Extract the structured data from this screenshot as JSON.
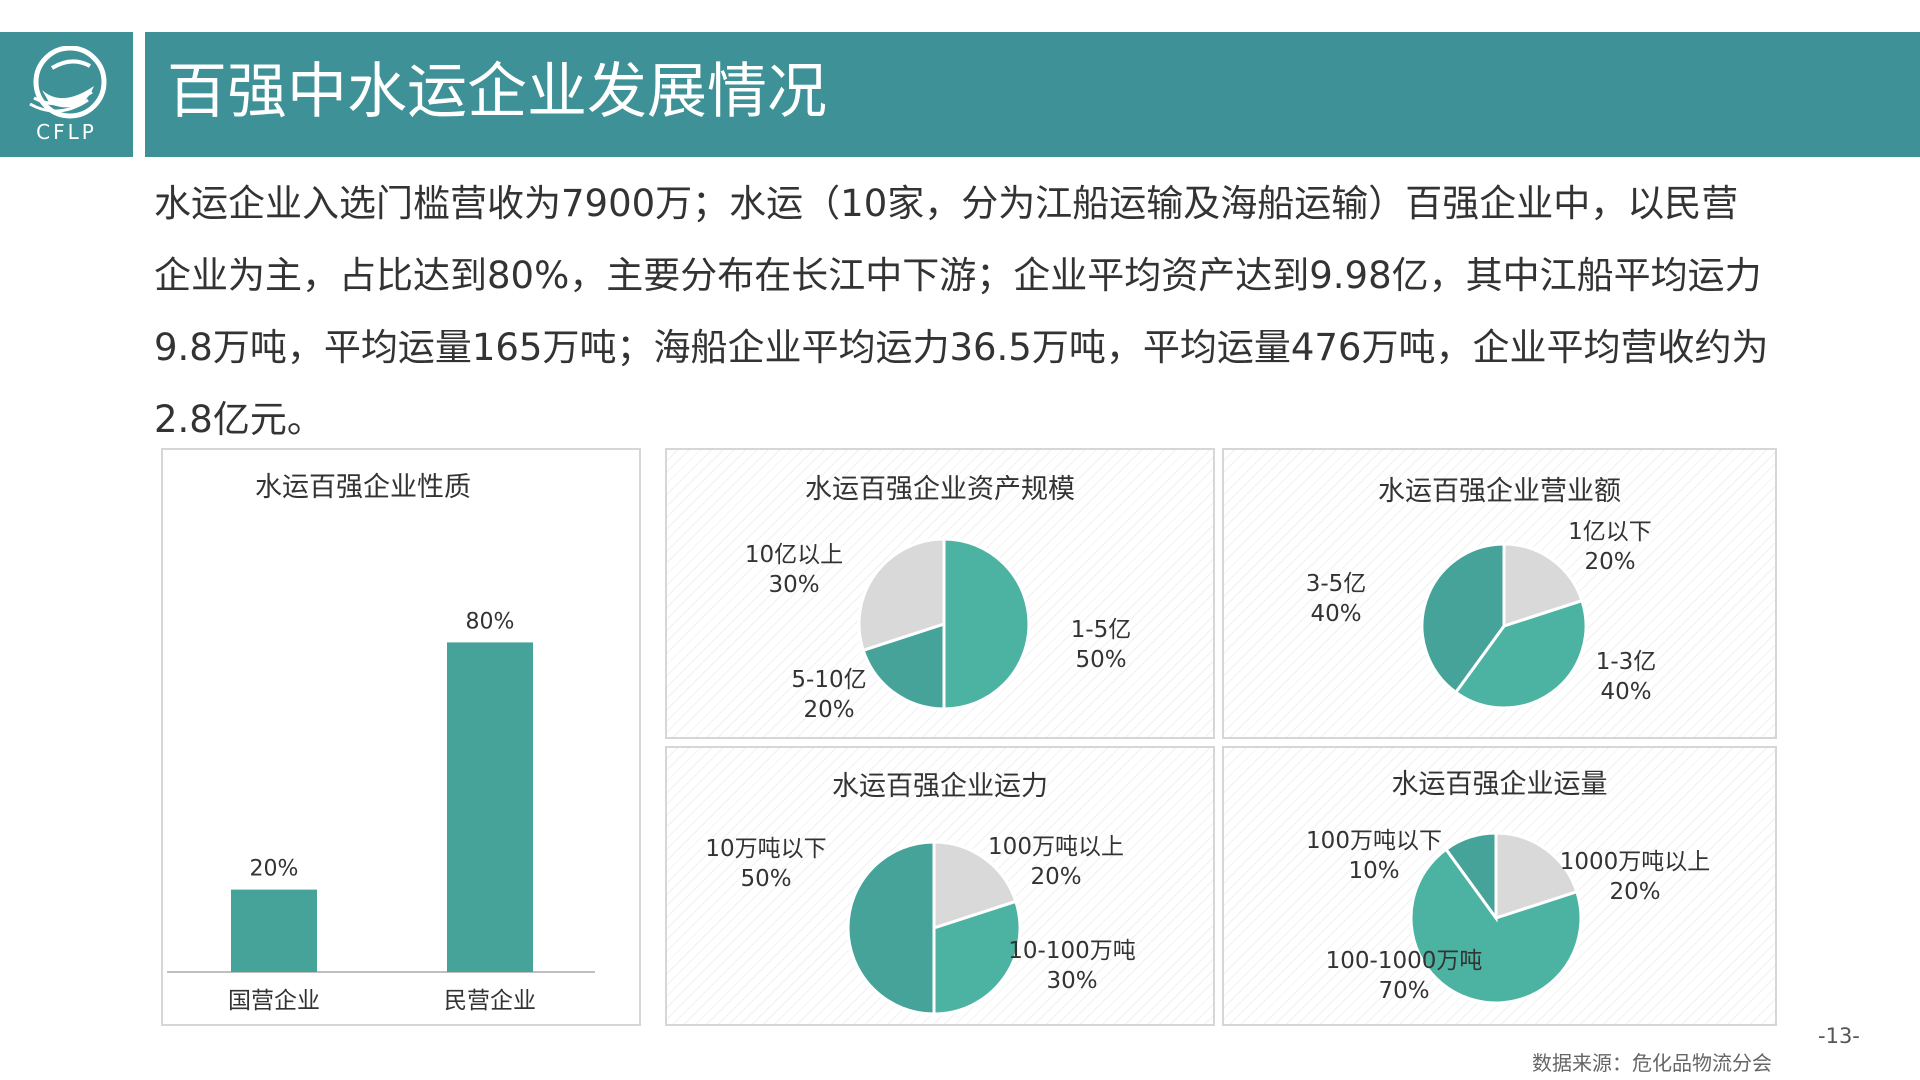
{
  "header": {
    "logo_text": "CFLP",
    "title": "百强中水运企业发展情况"
  },
  "intro": "水运企业入选门槛营收为7900万；水运（10家，分为江船运输及海船运输）百强企业中，以民营企业为主，占比达到80%，主要分布在长江中下游；企业平均资产达到9.98亿，其中江船平均运力9.8万吨，平均运量165万吨；海船企业平均运力36.5万吨，平均运量476万吨，企业平均营收约为2.8亿元。",
  "colors": {
    "teal_dark": "#45a39a",
    "teal_mid": "#4cb3a2",
    "gray": "#d9d9d9",
    "header": "#3e9196"
  },
  "chart_data": [
    {
      "id": "nature",
      "type": "bar",
      "title": "水运百强企业性质",
      "categories": [
        "国营企业",
        "民营企业"
      ],
      "values": [
        20,
        80
      ],
      "value_labels": [
        "20%",
        "80%"
      ],
      "ylim": [
        0,
        100
      ],
      "grid": false
    },
    {
      "id": "assets",
      "type": "pie",
      "title": "水运百强企业资产规模",
      "slices": [
        {
          "label": "1-5亿",
          "value_label": "50%",
          "value": 50,
          "color": "#4cb3a2"
        },
        {
          "label": "5-10亿",
          "value_label": "20%",
          "value": 20,
          "color": "#45a39a"
        },
        {
          "label": "10亿以上",
          "value_label": "30%",
          "value": 30,
          "color": "#d9d9d9"
        }
      ]
    },
    {
      "id": "revenue",
      "type": "pie",
      "title": "水运百强企业营业额",
      "slices": [
        {
          "label": "1亿以下",
          "value_label": "20%",
          "value": 20,
          "color": "#d9d9d9"
        },
        {
          "label": "1-3亿",
          "value_label": "40%",
          "value": 40,
          "color": "#4cb3a2"
        },
        {
          "label": "3-5亿",
          "value_label": "40%",
          "value": 40,
          "color": "#45a39a"
        }
      ]
    },
    {
      "id": "capacity",
      "type": "pie",
      "title": "水运百强企业运力",
      "slices": [
        {
          "label": "100万吨以上",
          "value_label": "20%",
          "value": 20,
          "color": "#d9d9d9"
        },
        {
          "label": "10-100万吨",
          "value_label": "30%",
          "value": 30,
          "color": "#4cb3a2"
        },
        {
          "label": "10万吨以下",
          "value_label": "50%",
          "value": 50,
          "color": "#45a39a"
        }
      ]
    },
    {
      "id": "volume",
      "type": "pie",
      "title": "水运百强企业运量",
      "slices": [
        {
          "label": "1000万吨以上",
          "value_label": "20%",
          "value": 20,
          "color": "#d9d9d9"
        },
        {
          "label": "100-1000万吨",
          "value_label": "70%",
          "value": 70,
          "color": "#4cb3a2"
        },
        {
          "label": "100万吨以下",
          "value_label": "10%",
          "value": 10,
          "color": "#45a39a"
        }
      ]
    }
  ],
  "footer": {
    "page_number": "-13-",
    "source": "数据来源：危化品物流分会"
  }
}
